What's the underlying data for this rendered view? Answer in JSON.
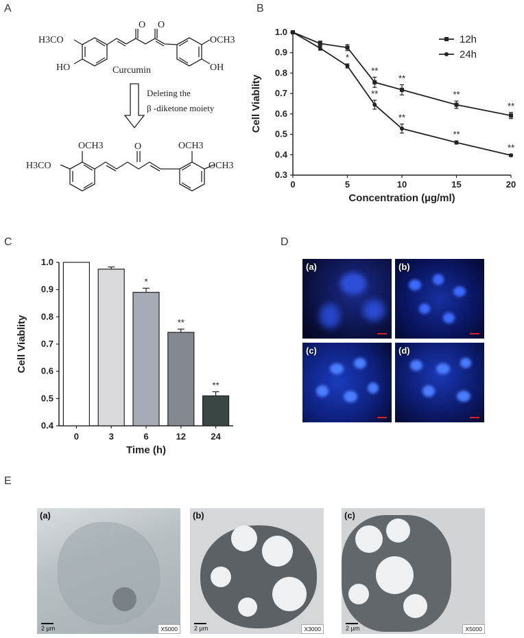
{
  "panels": {
    "a": "A",
    "b": "B",
    "c": "C",
    "d": "D",
    "e": "E"
  },
  "chem": {
    "curcumin_label": "Curcumin",
    "arrow_line1": "Deleting the",
    "arrow_line2": "β -diketone moiety",
    "sub_h3co": "H3CO",
    "sub_och3": "OCH3",
    "sub_ho": "HO",
    "sub_oh": "OH",
    "sub_o": "O"
  },
  "chart_data": [
    {
      "type": "line",
      "xlabel": "Concentration (µg/ml)",
      "ylabel": "Cell Viablity",
      "x": [
        0,
        2.5,
        5,
        7.5,
        10,
        15,
        20
      ],
      "xticks": [
        0,
        5,
        10,
        15,
        20
      ],
      "ylim": [
        0.3,
        1.0
      ],
      "yticks": [
        "0.3",
        "0.4",
        "0.5",
        "0.6",
        "0.7",
        "0.8",
        "0.9",
        "1.0"
      ],
      "legend_position": "top-right",
      "series": [
        {
          "name": "12h",
          "marker": "square",
          "values": [
            1.0,
            0.945,
            0.925,
            0.755,
            0.718,
            0.645,
            0.592
          ],
          "err": [
            0,
            0.012,
            0.015,
            0.025,
            0.025,
            0.018,
            0.015
          ],
          "sig": [
            "",
            "",
            "",
            "**",
            "**",
            "**",
            "**"
          ]
        },
        {
          "name": "24h",
          "marker": "circle",
          "values": [
            1.0,
            0.922,
            0.835,
            0.645,
            0.528,
            0.46,
            0.397
          ],
          "err": [
            0,
            0.01,
            0.01,
            0.022,
            0.022,
            0.008,
            0.005
          ],
          "sig": [
            "",
            "",
            "*",
            "**",
            "**",
            "**",
            "**"
          ]
        }
      ]
    },
    {
      "type": "bar",
      "xlabel": "Time (h)",
      "ylabel": "Cell Viablity",
      "categories": [
        "0",
        "3",
        "6",
        "12",
        "24"
      ],
      "values": [
        1.0,
        0.975,
        0.89,
        0.743,
        0.51
      ],
      "err": [
        0,
        0.008,
        0.015,
        0.012,
        0.015
      ],
      "sig": [
        "",
        "",
        "*",
        "**",
        "**"
      ],
      "colors": [
        "#ffffff",
        "#d9d9de",
        "#a7abb5",
        "#84888f",
        "#3a4545"
      ],
      "ylim": [
        0.4,
        1.0
      ],
      "yticks": [
        "0.4",
        "0.5",
        "0.6",
        "0.7",
        "0.8",
        "0.9",
        "1.0"
      ]
    }
  ],
  "fluorescence": {
    "labels": [
      "(a)",
      "(b)",
      "(c)",
      "(d)"
    ]
  },
  "tem": [
    {
      "label": "(a)",
      "scale": "2 µm",
      "mag": "X5000"
    },
    {
      "label": "(b)",
      "scale": "2 µm",
      "mag": "X3000"
    },
    {
      "label": "(c)",
      "scale": "2 µm",
      "mag": "X5000"
    }
  ]
}
